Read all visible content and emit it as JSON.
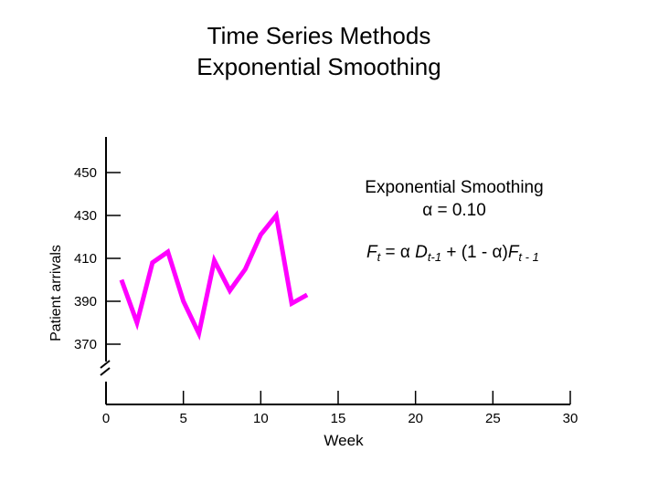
{
  "page": {
    "title_line1": "Time Series Methods",
    "title_line2": "Exponential Smoothing"
  },
  "colors": {
    "series": "#ff00ff",
    "axis": "#000000"
  },
  "annotation": {
    "line1": "Exponential Smoothing",
    "line2": "α = 0.10",
    "formula": {
      "F": "F",
      "t_sub": "t",
      "eq": " = ",
      "alpha": "α",
      "space": " ",
      "D": "D",
      "t1_sub": "t-1",
      "mid": " + (1 - α)",
      "F2": "F",
      "t1_sub2": "t - 1"
    }
  },
  "chart_data": {
    "type": "line",
    "title": "Time Series Methods Exponential Smoothing",
    "xlabel": "Week",
    "ylabel": "Patient arrivals",
    "xlim": [
      0,
      30
    ],
    "ylim": [
      350,
      460
    ],
    "axis_break": true,
    "grid": false,
    "x_ticks": [
      0,
      5,
      10,
      15,
      20,
      25,
      30
    ],
    "y_ticks": [
      370,
      390,
      410,
      430,
      450
    ],
    "series": [
      {
        "x": [
          1,
          2,
          3,
          4,
          5,
          6,
          7,
          8,
          9,
          10,
          11,
          12,
          13
        ],
        "y": [
          400,
          380,
          408,
          413,
          390,
          375,
          409,
          395,
          405,
          421,
          430,
          389,
          393
        ]
      }
    ]
  }
}
